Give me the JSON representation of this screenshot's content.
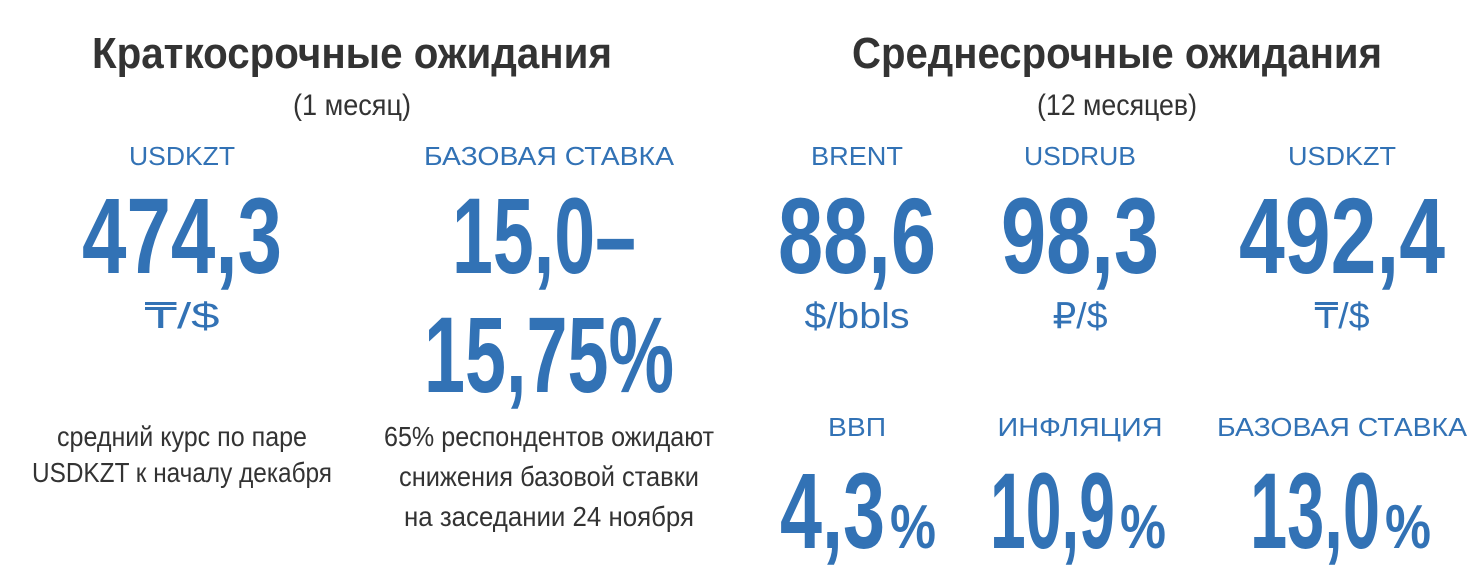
{
  "short_term": {
    "title": "Краткосрочные ожидания",
    "period": "(1 месяц)",
    "items": [
      {
        "label": "USDKZT",
        "value": "474,3",
        "unit": "₸/$",
        "note": [
          "средний курс по паре",
          "USDKZT к началу декабря"
        ]
      },
      {
        "label": "БАЗОВАЯ СТАВКА",
        "value_lines": [
          "15,0–",
          "15,75%"
        ],
        "note": [
          "65% респондентов ожидают",
          "снижения базовой ставки",
          "на заседании 24 ноября"
        ]
      }
    ]
  },
  "mid_term": {
    "title": "Среднесрочные ожидания",
    "period": "(12 месяцев)",
    "items": [
      {
        "label": "BRENT",
        "value": "88,6",
        "unit": "$/bbls"
      },
      {
        "label": "USDRUB",
        "value": "98,3",
        "unit": "₽/$"
      },
      {
        "label": "USDKZT",
        "value": "492,4",
        "unit": "₸/$"
      }
    ],
    "macro": [
      {
        "label": "ВВП",
        "value": "4,3",
        "unit": "%"
      },
      {
        "label": "ИНФЛЯЦИЯ",
        "value": "10,9",
        "unit": "%"
      },
      {
        "label": "БАЗОВАЯ СТАВКА",
        "value": "13,0",
        "unit": "%"
      }
    ]
  }
}
